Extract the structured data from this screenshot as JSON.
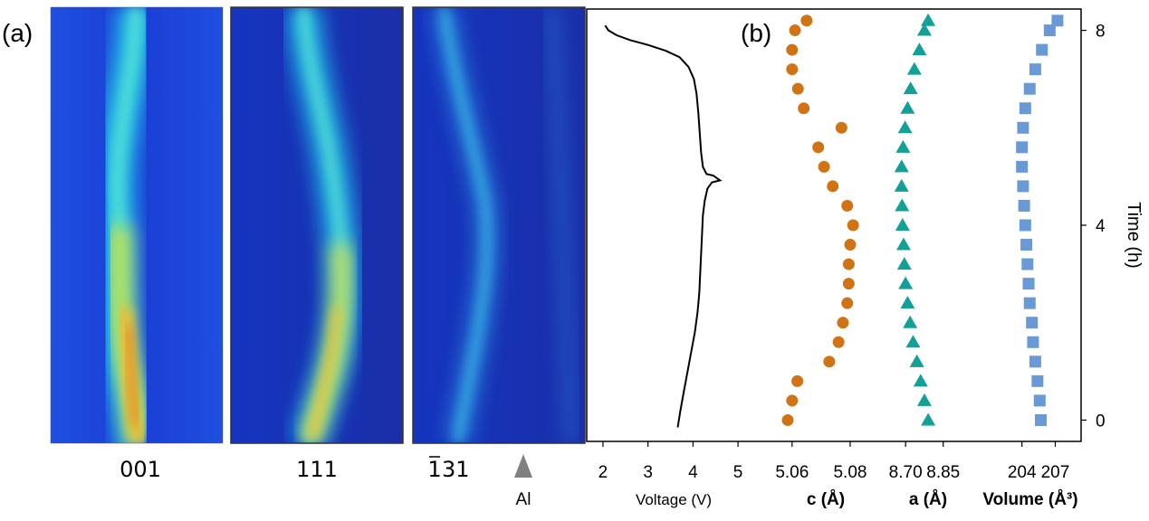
{
  "panels": {
    "a_label": "(a)",
    "b_label": "(b)"
  },
  "heatmaps": [
    {
      "label": "001",
      "peak_intensity_profile": [
        0.35,
        0.45,
        0.5,
        0.5,
        0.55,
        0.6,
        0.6,
        0.65,
        0.7,
        0.75,
        0.85,
        0.95,
        1.0,
        0.95,
        0.9
      ]
    },
    {
      "label": "111",
      "peak_intensity_profile": [
        0.3,
        0.35,
        0.4,
        0.45,
        0.45,
        0.5,
        0.55,
        0.55,
        0.6,
        0.65,
        0.7,
        0.75,
        0.8,
        0.8,
        0.75
      ]
    },
    {
      "label_bar": "1",
      "label_rest": "31",
      "peak_intensity_profile": [
        0.3,
        0.3,
        0.35,
        0.35,
        0.35,
        0.4,
        0.4,
        0.4,
        0.4,
        0.45,
        0.45,
        0.45,
        0.45,
        0.45,
        0.45
      ]
    }
  ],
  "al_marker": {
    "label": "Al",
    "color": "#808080"
  },
  "colors": {
    "voltage": "#000000",
    "c": "#d07314",
    "a": "#13a096",
    "volume": "#6a9ad6",
    "heat_bg": "#1a3fd6"
  },
  "chart_data": [
    {
      "type": "line",
      "name": "voltage",
      "xlabel": "Voltage (V)",
      "x_ticks": [
        "2",
        "3",
        "4",
        "5"
      ],
      "xlim": [
        1.8,
        5.3
      ],
      "ylim": [
        -0.4,
        8.4
      ],
      "points": [
        [
          3.66,
          -0.15
        ],
        [
          3.72,
          0.2
        ],
        [
          3.8,
          0.6
        ],
        [
          3.88,
          1.0
        ],
        [
          3.96,
          1.4
        ],
        [
          4.04,
          1.8
        ],
        [
          4.1,
          2.2
        ],
        [
          4.14,
          2.6
        ],
        [
          4.16,
          3.0
        ],
        [
          4.18,
          3.4
        ],
        [
          4.2,
          3.8
        ],
        [
          4.22,
          4.2
        ],
        [
          4.26,
          4.5
        ],
        [
          4.32,
          4.75
        ],
        [
          4.42,
          4.88
        ],
        [
          4.6,
          4.92
        ],
        [
          4.45,
          5.02
        ],
        [
          4.3,
          5.05
        ],
        [
          4.22,
          5.2
        ],
        [
          4.18,
          5.5
        ],
        [
          4.15,
          5.9
        ],
        [
          4.12,
          6.3
        ],
        [
          4.08,
          6.7
        ],
        [
          4.02,
          7.0
        ],
        [
          3.9,
          7.25
        ],
        [
          3.7,
          7.45
        ],
        [
          3.4,
          7.58
        ],
        [
          3.0,
          7.7
        ],
        [
          2.6,
          7.8
        ],
        [
          2.3,
          7.9
        ],
        [
          2.12,
          8.0
        ],
        [
          2.05,
          8.1
        ]
      ]
    },
    {
      "type": "scatter",
      "name": "c",
      "xlabel": "c (Å)",
      "x_ticks": [
        "5.06",
        "5.08"
      ],
      "xlim": [
        5.056,
        5.085
      ],
      "ylim": [
        -0.4,
        8.4
      ],
      "points": [
        [
          5.0585,
          0.0
        ],
        [
          5.06,
          0.4
        ],
        [
          5.0618,
          0.8
        ],
        [
          5.0728,
          1.2
        ],
        [
          5.076,
          1.6
        ],
        [
          5.0775,
          2.0
        ],
        [
          5.079,
          2.4
        ],
        [
          5.0795,
          2.8
        ],
        [
          5.0795,
          3.2
        ],
        [
          5.08,
          3.6
        ],
        [
          5.081,
          4.0
        ],
        [
          5.079,
          4.4
        ],
        [
          5.074,
          4.8
        ],
        [
          5.071,
          5.2
        ],
        [
          5.069,
          5.6
        ],
        [
          5.077,
          6.0
        ],
        [
          5.064,
          6.4
        ],
        [
          5.062,
          6.8
        ],
        [
          5.06,
          7.2
        ],
        [
          5.06,
          7.6
        ],
        [
          5.061,
          8.0
        ],
        [
          5.065,
          8.2
        ]
      ]
    },
    {
      "type": "scatter",
      "name": "a",
      "xlabel": "a (Å)",
      "x_ticks": [
        "8.70",
        "8.85"
      ],
      "xlim": [
        8.62,
        8.97
      ],
      "ylim": [
        -0.4,
        8.4
      ],
      "points": [
        [
          8.79,
          0.0
        ],
        [
          8.775,
          0.4
        ],
        [
          8.76,
          0.8
        ],
        [
          8.745,
          1.2
        ],
        [
          8.73,
          1.6
        ],
        [
          8.718,
          2.0
        ],
        [
          8.708,
          2.4
        ],
        [
          8.7,
          2.8
        ],
        [
          8.695,
          3.2
        ],
        [
          8.692,
          3.6
        ],
        [
          8.688,
          4.0
        ],
        [
          8.686,
          4.4
        ],
        [
          8.684,
          4.8
        ],
        [
          8.684,
          5.2
        ],
        [
          8.69,
          5.6
        ],
        [
          8.698,
          6.0
        ],
        [
          8.708,
          6.4
        ],
        [
          8.72,
          6.8
        ],
        [
          8.735,
          7.2
        ],
        [
          8.755,
          7.6
        ],
        [
          8.775,
          8.0
        ],
        [
          8.79,
          8.2
        ]
      ]
    },
    {
      "type": "scatter",
      "name": "volume",
      "xlabel": "Volume (Å³)",
      "x_ticks": [
        "204",
        "207"
      ],
      "xlim": [
        201.5,
        209.0
      ],
      "ylim": [
        -0.4,
        8.4
      ],
      "points": [
        [
          205.7,
          0.0
        ],
        [
          205.6,
          0.4
        ],
        [
          205.4,
          0.8
        ],
        [
          205.2,
          1.2
        ],
        [
          205.0,
          1.6
        ],
        [
          204.9,
          2.0
        ],
        [
          204.7,
          2.4
        ],
        [
          204.6,
          2.8
        ],
        [
          204.5,
          3.2
        ],
        [
          204.4,
          3.6
        ],
        [
          204.3,
          4.0
        ],
        [
          204.2,
          4.4
        ],
        [
          204.1,
          4.8
        ],
        [
          204.0,
          5.2
        ],
        [
          204.0,
          5.6
        ],
        [
          204.1,
          6.0
        ],
        [
          204.3,
          6.4
        ],
        [
          204.7,
          6.8
        ],
        [
          205.2,
          7.2
        ],
        [
          205.8,
          7.6
        ],
        [
          206.5,
          8.0
        ],
        [
          207.2,
          8.2
        ]
      ]
    }
  ],
  "time_axis": {
    "label": "Time (h)",
    "ticks": [
      "0",
      "4",
      "8"
    ],
    "tick_values": [
      0,
      4,
      8
    ],
    "ylim": [
      -0.4,
      8.4
    ]
  }
}
